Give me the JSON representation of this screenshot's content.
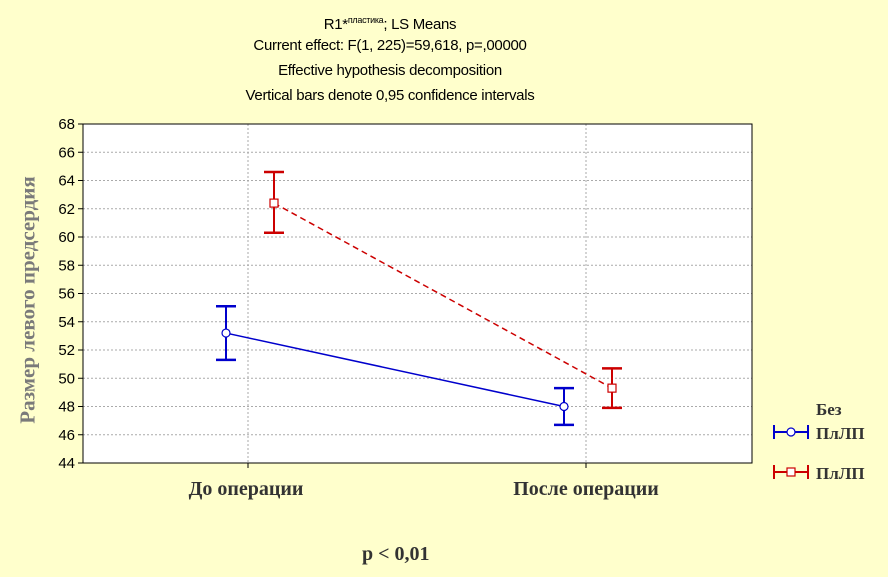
{
  "header": {
    "title_main": "R1*",
    "title_sup": "пластика",
    "title_suffix": "; LS Means",
    "line2": "Current effect: F(1, 225)=59,618, p=,00000",
    "line3": "Effective hypothesis decomposition",
    "line4": "Vertical bars denote 0,95 confidence intervals"
  },
  "footer_note": "p < 0,01",
  "chart_data": {
    "type": "line",
    "ylabel": "Размер левого предсердия",
    "xlabel": "",
    "categories": [
      "До операции",
      "После операции"
    ],
    "ylim": [
      44,
      68
    ],
    "yticks": [
      44,
      46,
      48,
      50,
      52,
      54,
      56,
      58,
      60,
      62,
      64,
      66,
      68
    ],
    "grid": true,
    "legend_position": "right",
    "legend_title": "Без",
    "series": [
      {
        "name": "ПлЛП",
        "legend_label": "ПлЛП",
        "color": "#0000CC",
        "line_style": "solid",
        "marker": "circle",
        "values": [
          53.2,
          48.0
        ],
        "ci_lower": [
          51.3,
          46.7
        ],
        "ci_upper": [
          55.1,
          49.3
        ]
      },
      {
        "name": "ПлЛП",
        "legend_label": "ПлЛП",
        "color": "#CC0000",
        "line_style": "dashed",
        "marker": "square",
        "values": [
          62.4,
          49.3
        ],
        "ci_lower": [
          60.3,
          47.9
        ],
        "ci_upper": [
          64.6,
          50.7
        ]
      }
    ]
  }
}
